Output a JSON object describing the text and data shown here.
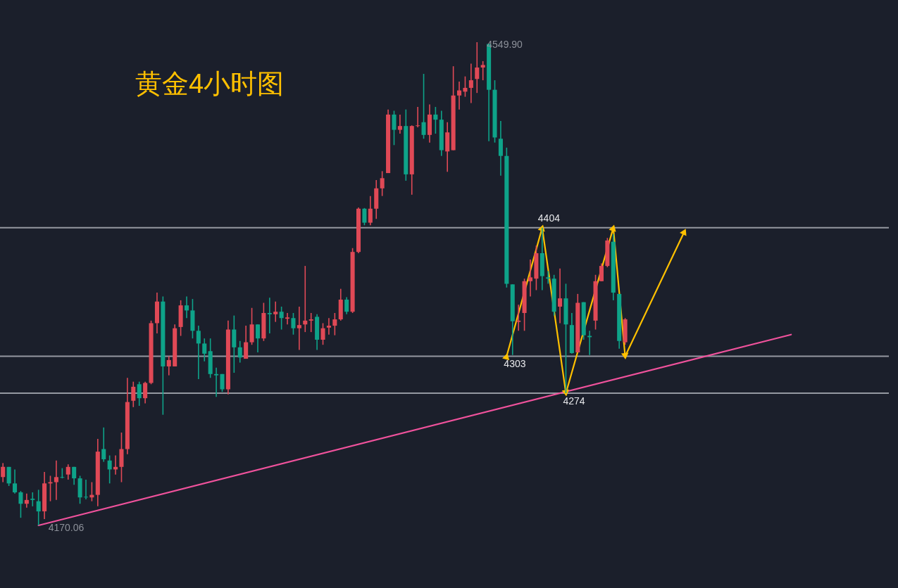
{
  "chart_data": {
    "type": "candlestick",
    "title": "黄金4小时图",
    "tick_labels": false,
    "categories": [
      null,
      null,
      null,
      null,
      null,
      null,
      null,
      null,
      null,
      null,
      null,
      null,
      null,
      null,
      null,
      null,
      null,
      null,
      null,
      null,
      null,
      null,
      null,
      null,
      null,
      null,
      null,
      null,
      null,
      null,
      null,
      null,
      null,
      null,
      null,
      null,
      null,
      null,
      null,
      null,
      null,
      null,
      null,
      null,
      null,
      null,
      null,
      null,
      null,
      null,
      null,
      null,
      null,
      null,
      null,
      null,
      null,
      null,
      null,
      null,
      null,
      null,
      null,
      null,
      null,
      null,
      null,
      null,
      null,
      null,
      null,
      null,
      null,
      null,
      null,
      null,
      null,
      null,
      null,
      null,
      null,
      null,
      null,
      null,
      null,
      null,
      null,
      null,
      null,
      null,
      null,
      null,
      null,
      null,
      null,
      null,
      null,
      null,
      null,
      null,
      null,
      null,
      null,
      null,
      null,
      null,
      null,
      null,
      null,
      null,
      null,
      null,
      null,
      null,
      null,
      null,
      null,
      null,
      null,
      null,
      null,
      null,
      null,
      null,
      null,
      null,
      null,
      null,
      null,
      null,
      null,
      null,
      null,
      null,
      null,
      null,
      null,
      null,
      null,
      null,
      null,
      null,
      null,
      null,
      null,
      null,
      null,
      null,
      null,
      null
    ],
    "ohlc": [
      [
        4208,
        4219,
        4204,
        4216
      ],
      [
        4216,
        4216,
        4201,
        4203
      ],
      [
        4203,
        4214,
        4195,
        4196
      ],
      [
        4196,
        4197,
        4176,
        4187
      ],
      [
        4187,
        4195,
        4184,
        4190
      ],
      [
        4191,
        4196,
        4185,
        4190
      ],
      [
        4189,
        4198,
        4170.06,
        4181
      ],
      [
        4181,
        4212,
        4175,
        4203
      ],
      [
        4203,
        4209,
        4189,
        4204
      ],
      [
        4204,
        4221,
        4190,
        4208
      ],
      [
        4208,
        4215,
        4207,
        4207.5
      ],
      [
        4210,
        4218,
        4206,
        4216
      ],
      [
        4216,
        4216,
        4202,
        4207
      ],
      [
        4207,
        4209,
        4187,
        4192
      ],
      [
        4192.5,
        4206,
        4190.5,
        4192
      ],
      [
        4192,
        4204,
        4189,
        4194
      ],
      [
        4194,
        4238,
        4185,
        4228
      ],
      [
        4230,
        4247,
        4220,
        4222
      ],
      [
        4221,
        4225,
        4203,
        4214
      ],
      [
        4214,
        4225,
        4210,
        4216
      ],
      [
        4216,
        4243,
        4204,
        4230
      ],
      [
        4230,
        4286,
        4226,
        4267
      ],
      [
        4268,
        4283,
        4263,
        4279
      ],
      [
        4281,
        4283,
        4264,
        4270
      ],
      [
        4270,
        4283,
        4266,
        4282
      ],
      [
        4282,
        4331,
        4281,
        4329
      ],
      [
        4329,
        4353,
        4321,
        4346
      ],
      [
        4346,
        4350,
        4257,
        4295
      ],
      [
        4295,
        4303,
        4288,
        4300
      ],
      [
        4295,
        4328,
        4295,
        4325
      ],
      [
        4326,
        4347,
        4319,
        4343
      ],
      [
        4343,
        4350,
        4333,
        4339
      ],
      [
        4339,
        4348,
        4317,
        4323
      ],
      [
        4323,
        4327,
        4285,
        4313
      ],
      [
        4313,
        4317,
        4299,
        4305
      ],
      [
        4307,
        4317,
        4286,
        4289
      ],
      [
        4289,
        4294,
        4271,
        4288
      ],
      [
        4289,
        4289,
        4275,
        4277
      ],
      [
        4277,
        4331,
        4273,
        4324
      ],
      [
        4324,
        4335,
        4290,
        4310
      ],
      [
        4310,
        4315,
        4298,
        4302
      ],
      [
        4301,
        4327,
        4301,
        4314
      ],
      [
        4314,
        4341,
        4312,
        4328
      ],
      [
        4328,
        4328,
        4306,
        4317
      ],
      [
        4317,
        4345,
        4315,
        4337
      ],
      [
        4337,
        4349,
        4321,
        4336
      ],
      [
        4336,
        4346,
        4330,
        4338
      ],
      [
        4338,
        4342,
        4324,
        4333
      ],
      [
        4332.5,
        4337,
        4328,
        4333.5
      ],
      [
        4333,
        4337,
        4320,
        4325
      ],
      [
        4325,
        4342,
        4308,
        4327.5
      ],
      [
        4328,
        4374,
        4322,
        4331
      ],
      [
        4331,
        4337,
        4322,
        4332
      ],
      [
        4334,
        4336,
        4308,
        4316
      ],
      [
        4316,
        4329,
        4312,
        4325
      ],
      [
        4325.5,
        4333,
        4320,
        4327
      ],
      [
        4327,
        4337,
        4319.5,
        4332
      ],
      [
        4332,
        4356,
        4331,
        4347.5
      ],
      [
        4347.5,
        4349.5,
        4336,
        4338
      ],
      [
        4338,
        4388,
        4337,
        4385
      ],
      [
        4385,
        4420,
        4384,
        4419
      ],
      [
        4419,
        4419.5,
        4406,
        4408
      ],
      [
        4408,
        4429,
        4406,
        4419
      ],
      [
        4419,
        4441.5,
        4411,
        4435
      ],
      [
        4435,
        4448.5,
        4429,
        4443
      ],
      [
        4447,
        4497,
        4447,
        4493
      ],
      [
        4493,
        4496,
        4469,
        4481
      ],
      [
        4481,
        4493,
        4478,
        4484
      ],
      [
        4484,
        4497,
        4441,
        4446
      ],
      [
        4446,
        4484.5,
        4430,
        4484
      ],
      [
        4484,
        4499,
        4483,
        4484.5
      ],
      [
        4487,
        4525,
        4474,
        4477
      ],
      [
        4477,
        4501,
        4471,
        4493
      ],
      [
        4493,
        4499,
        4478,
        4489
      ],
      [
        4489,
        4496,
        4460.5,
        4465
      ],
      [
        4464,
        4487,
        4448,
        4479
      ],
      [
        4465,
        4531,
        4465,
        4508
      ],
      [
        4508,
        4519,
        4497,
        4512
      ],
      [
        4511,
        4523,
        4507,
        4514
      ],
      [
        4514,
        4533,
        4502,
        4520
      ],
      [
        4521,
        4549.9,
        4510,
        4530
      ],
      [
        4530,
        4535,
        4520,
        4532
      ],
      [
        4548.5,
        4548.5,
        4472,
        4512.5
      ],
      [
        4512.5,
        4520,
        4471,
        4475
      ],
      [
        4474,
        4488,
        4445,
        4460.5
      ],
      [
        4460.5,
        4467,
        4357,
        4360
      ],
      [
        4359.5,
        4359.5,
        4304,
        4330.5
      ],
      [
        4330,
        4343.5,
        4323,
        4331
      ],
      [
        4337,
        4364,
        4323,
        4362
      ],
      [
        4362,
        4379,
        4350,
        4365
      ],
      [
        4364,
        4390,
        4355,
        4384
      ],
      [
        4384,
        4404,
        4355,
        4366
      ],
      [
        4365,
        4370,
        4360,
        4364
      ],
      [
        4364,
        4367,
        4335,
        4338
      ],
      [
        4342,
        4372,
        4329,
        4348.5
      ],
      [
        4348.5,
        4360,
        4274,
        4328
      ],
      [
        4327.5,
        4337,
        4305,
        4305.5
      ],
      [
        4306,
        4352,
        4306,
        4345
      ],
      [
        4345.5,
        4345.5,
        4316,
        4319.5
      ],
      [
        4319,
        4323,
        4304,
        4318
      ],
      [
        4331,
        4367,
        4324,
        4362
      ],
      [
        4362,
        4376,
        4362,
        4374
      ],
      [
        4374,
        4396,
        4373,
        4394
      ],
      [
        4393,
        4399,
        4347,
        4353
      ],
      [
        4352,
        4352,
        4309,
        4315
      ],
      [
        4314,
        4333,
        4312,
        4332
      ],
      null,
      null,
      null,
      null,
      null,
      null,
      null,
      null,
      null,
      null,
      null,
      null,
      null,
      null,
      null,
      null,
      null,
      null,
      null,
      null,
      null,
      null,
      null,
      null,
      null,
      null,
      null,
      null,
      null,
      null,
      null,
      null,
      null,
      null,
      null,
      null,
      null,
      null,
      null,
      null,
      null,
      null,
      null,
      null
    ],
    "colors": [
      "#e04956",
      "#0ea389",
      "#0ea389",
      "#0ea389",
      "#e04956",
      "#0ea389",
      "#0ea389",
      "#e04956",
      "#e04956",
      "#e04956",
      "#0ea389",
      "#e04956",
      "#0ea389",
      "#0ea389",
      "#0ea389",
      "#e04956",
      "#e04956",
      "#0ea389",
      "#0ea389",
      "#e04956",
      "#e04956",
      "#e04956",
      "#e04956",
      "#0ea389",
      "#e04956",
      "#e04956",
      "#e04956",
      "#0ea389",
      "#e04956",
      "#e04956",
      "#e04956",
      "#0ea389",
      "#0ea389",
      "#0ea389",
      "#0ea389",
      "#0ea389",
      "#0ea389",
      "#0ea389",
      "#e04956",
      "#0ea389",
      "#0ea389",
      "#e04956",
      "#e04956",
      "#0ea389",
      "#e04956",
      "#0ea389",
      "#e04956",
      "#0ea389",
      "#e04956",
      "#0ea389",
      "#e04956",
      "#e04956",
      "#e04956",
      "#0ea389",
      "#e04956",
      "#e04956",
      "#e04956",
      "#e04956",
      "#0ea389",
      "#e04956",
      "#e04956",
      "#0ea389",
      "#e04956",
      "#e04956",
      "#e04956",
      "#e04956",
      "#0ea389",
      "#e04956",
      "#0ea389",
      "#e04956",
      "#e04956",
      "#0ea389",
      "#e04956",
      "#0ea389",
      "#0ea389",
      "#e04956",
      "#e04956",
      "#e04956",
      "#e04956",
      "#e04956",
      "#e04956",
      "#e04956",
      "#0ea389",
      "#0ea389",
      "#0ea389",
      "#0ea389",
      "#0ea389",
      "#e04956",
      "#e04956",
      "#e04956",
      "#e04956",
      "#0ea389",
      "#0ea389",
      "#0ea389",
      "#e04956",
      "#0ea389",
      "#0ea389",
      "#e04956",
      "#0ea389",
      "#0ea389",
      "#e04956",
      "#e04956",
      "#e04956",
      "#0ea389",
      "#0ea389",
      "#e04956",
      null,
      null,
      null,
      null,
      null,
      null,
      null,
      null,
      null,
      null,
      null,
      null,
      null,
      null,
      null,
      null,
      null,
      null,
      null,
      null,
      null,
      null,
      null,
      null,
      null,
      null,
      null,
      null,
      null,
      null,
      null,
      null,
      null,
      null,
      null,
      null,
      null,
      null,
      null,
      null,
      null,
      null,
      null,
      null
    ],
    "series": [
      {
        "type": "line",
        "color": "#f0529c",
        "values": [
          null,
          null,
          null,
          null,
          null,
          null,
          4170,
          null,
          null,
          null,
          null,
          null,
          null,
          null,
          null,
          null,
          null,
          null,
          null,
          null,
          null,
          null,
          null,
          null,
          null,
          null,
          null,
          null,
          null,
          null,
          null,
          null,
          null,
          null,
          null,
          null,
          null,
          null,
          null,
          null,
          null,
          null,
          null,
          null,
          null,
          null,
          null,
          null,
          null,
          null,
          null,
          null,
          null,
          null,
          null,
          null,
          null,
          null,
          null,
          null,
          null,
          null,
          null,
          null,
          null,
          null,
          null,
          null,
          null,
          null,
          null,
          null,
          null,
          null,
          null,
          null,
          null,
          null,
          null,
          null,
          null,
          null,
          null,
          null,
          null,
          null,
          null,
          null,
          null,
          null,
          null,
          null,
          null,
          null,
          null,
          null,
          null,
          null,
          null,
          null,
          null,
          null,
          null,
          null,
          null,
          null,
          null,
          null,
          null,
          null,
          null,
          null,
          null,
          null,
          null,
          null,
          null,
          null,
          null,
          null,
          null,
          null,
          null,
          null,
          null,
          null,
          null,
          null,
          null,
          null,
          null,
          null,
          null,
          4320,
          null,
          null,
          null,
          null,
          null,
          null,
          null,
          null,
          null,
          null,
          null,
          null,
          null,
          null,
          null,
          null
        ]
      },
      {
        "type": "line",
        "color": "#ffc000",
        "marker": "triangle",
        "values": [
          null,
          null,
          null,
          null,
          null,
          null,
          null,
          null,
          null,
          null,
          null,
          null,
          null,
          null,
          null,
          null,
          null,
          null,
          null,
          null,
          null,
          null,
          null,
          null,
          null,
          null,
          null,
          null,
          null,
          null,
          null,
          null,
          null,
          null,
          null,
          null,
          null,
          null,
          null,
          null,
          null,
          null,
          null,
          null,
          null,
          null,
          null,
          null,
          null,
          null,
          null,
          null,
          null,
          null,
          null,
          null,
          null,
          null,
          null,
          null,
          null,
          null,
          null,
          null,
          null,
          null,
          null,
          null,
          null,
          null,
          null,
          null,
          null,
          null,
          null,
          null,
          null,
          null,
          null,
          null,
          null,
          null,
          null,
          null,
          null,
          4303,
          null,
          null,
          null,
          null,
          null,
          4404,
          null,
          null,
          null,
          4274,
          null,
          null,
          null,
          null,
          null,
          null,
          null,
          4404,
          null,
          4303,
          null,
          null,
          null,
          null,
          null,
          null,
          null,
          null,
          null,
          4401,
          null,
          null,
          null,
          null,
          null,
          null,
          null,
          null,
          null,
          null,
          null,
          null,
          null,
          null,
          null,
          null,
          null,
          null,
          null,
          null,
          null,
          null,
          null,
          null,
          null,
          null,
          null,
          null,
          null,
          null,
          null,
          null,
          null,
          null
        ]
      }
    ],
    "ref_lines": [
      {
        "axis": "y",
        "value": 4404,
        "label": "4404",
        "color": "#9598a1"
      },
      {
        "axis": "y",
        "value": 4303,
        "label": "4303",
        "color": "#9598a1"
      },
      {
        "axis": "y",
        "value": 4274,
        "label": "4274",
        "color": "#9598a1"
      }
    ],
    "annotations": [
      "4549.90",
      "4170.06"
    ]
  }
}
